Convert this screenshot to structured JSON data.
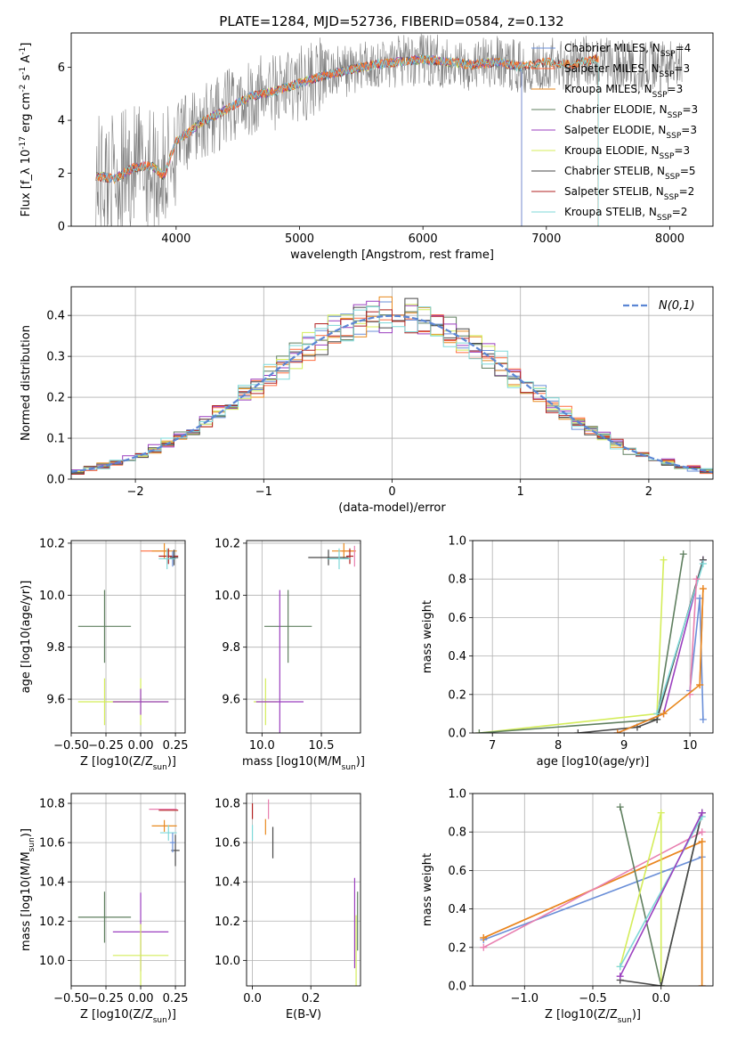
{
  "figure_title": "PLATE=1284, MJD=52736, FIBERID=0584, z=0.132",
  "colors": {
    "chabrier_miles": "#6a8fd8",
    "salpeter_miles": "#ff6b3d",
    "kroupa_miles": "#e8891e",
    "chabrier_elodie": "#5f7f5f",
    "salpeter_elodie": "#9b3fbf",
    "kroupa_elodie": "#d4ed5a",
    "chabrier_stelib": "#484848",
    "salpeter_stelib": "#b22222",
    "kroupa_stelib": "#7fd8d8",
    "pink": "#e87fb0",
    "gauss": "#5b86d4",
    "grid": "#b0b0b0"
  },
  "chart_data": [
    {
      "id": "spectrum",
      "type": "line",
      "xlabel": "wavelength [Angstrom, rest frame]",
      "ylabel": "Flux [f_λ 10^-17 erg cm^-2 s^-1 A^-1]",
      "xlim": [
        3150,
        8350
      ],
      "ylim": [
        0,
        7.3
      ],
      "xticks": [
        4000,
        5000,
        6000,
        7000,
        8000
      ],
      "yticks": [
        0,
        2,
        4,
        6
      ],
      "legend": [
        "Chabrier MILES, N_SSP=4",
        "Salpeter MILES, N_SSP=3",
        "Kroupa MILES, N_SSP=3",
        "Chabrier ELODIE, N_SSP=3",
        "Salpeter ELODIE, N_SSP=3",
        "Kroupa ELODIE, N_SSP=3",
        "Chabrier STELIB, N_SSP=5",
        "Salpeter STELIB, N_SSP=2",
        "Kroupa STELIB, N_SSP=2"
      ],
      "continuum": [
        [
          3350,
          1.9
        ],
        [
          3500,
          1.8
        ],
        [
          3650,
          2.2
        ],
        [
          3800,
          2.3
        ],
        [
          3900,
          1.9
        ],
        [
          4000,
          3.2
        ],
        [
          4200,
          3.9
        ],
        [
          4400,
          4.4
        ],
        [
          4600,
          4.9
        ],
        [
          4800,
          5.1
        ],
        [
          5000,
          5.4
        ],
        [
          5200,
          5.7
        ],
        [
          5400,
          5.9
        ],
        [
          5600,
          6.1
        ],
        [
          5800,
          6.2
        ],
        [
          6000,
          6.3
        ],
        [
          6200,
          6.2
        ],
        [
          6400,
          6.1
        ],
        [
          6600,
          6.2
        ],
        [
          6800,
          6.0
        ],
        [
          7000,
          6.2
        ],
        [
          7200,
          6.1
        ],
        [
          7400,
          6.3
        ],
        [
          7600,
          6.1
        ],
        [
          7800,
          6.0
        ],
        [
          8000,
          6.0
        ],
        [
          8100,
          5.9
        ]
      ],
      "model_end": [
        6800,
        7420,
        7420,
        6800,
        6800,
        6800,
        7420,
        7420,
        7420
      ]
    },
    {
      "id": "residuals",
      "type": "histogram",
      "xlabel": "(data-model)/error",
      "ylabel": "Normed distribution",
      "xlim": [
        -2.5,
        2.5
      ],
      "ylim": [
        0,
        0.47
      ],
      "xticks": [
        -2,
        -1,
        0,
        1,
        2
      ],
      "yticks": [
        0.0,
        0.1,
        0.2,
        0.3,
        0.4
      ],
      "legend_label": "N(0,1)",
      "bin_width": 0.1
    },
    {
      "id": "z_age",
      "type": "scatter",
      "xlabel": "Z [log10(Z/Z_sun)]",
      "ylabel": "age  [log10(age/yr)]",
      "xlim": [
        -0.5,
        0.32
      ],
      "ylim": [
        9.47,
        10.21
      ],
      "xticks": [
        -0.5,
        -0.25,
        0.0,
        0.25
      ],
      "yticks": [
        9.6,
        9.8,
        10.0,
        10.2
      ],
      "points": [
        {
          "c": "chabrier_elodie",
          "x": -0.26,
          "y": 9.88,
          "xerr": 0.19,
          "yerr": 0.14
        },
        {
          "c": "kroupa_elodie",
          "x": -0.26,
          "y": 9.59,
          "xerr": 0.19,
          "yerr": 0.09
        },
        {
          "c": "kroupa_elodie",
          "x": 0.0,
          "y": 9.59,
          "xerr": 0.2,
          "yerr": 0.09
        },
        {
          "c": "salpeter_elodie",
          "x": 0.0,
          "y": 9.59,
          "xerr": 0.2,
          "yerr": 0.05
        },
        {
          "c": "salpeter_miles",
          "x": 0.1,
          "y": 10.17,
          "xerr": 0.1,
          "yerr": 0.0
        },
        {
          "c": "kroupa_miles",
          "x": 0.17,
          "y": 10.17,
          "xerr": 0.09,
          "yerr": 0.03
        },
        {
          "c": "salpeter_stelib",
          "x": 0.2,
          "y": 10.15,
          "xerr": 0.07,
          "yerr": 0.03
        },
        {
          "c": "chabrier_miles",
          "x": 0.23,
          "y": 10.14,
          "xerr": 0.02,
          "yerr": 0.03
        },
        {
          "c": "chabrier_stelib",
          "x": 0.24,
          "y": 10.145,
          "xerr": 0.03,
          "yerr": 0.03
        },
        {
          "c": "kroupa_stelib",
          "x": 0.19,
          "y": 10.14,
          "xerr": 0.06,
          "yerr": 0.04
        }
      ]
    },
    {
      "id": "mass_age",
      "type": "scatter",
      "xlabel": "mass [log10(M/M_sun)]",
      "ylabel": "",
      "xlim": [
        9.87,
        10.83
      ],
      "ylim": [
        9.47,
        10.21
      ],
      "xticks": [
        10.0,
        10.5
      ],
      "yticks": [
        9.6,
        9.8,
        10.0,
        10.2
      ],
      "points": [
        {
          "c": "chabrier_elodie",
          "x": 10.22,
          "y": 9.88,
          "xerr": 0.2,
          "yerr": 0.14
        },
        {
          "c": "kroupa_elodie",
          "x": 10.03,
          "y": 9.59,
          "xerr": 0.1,
          "yerr": 0.09
        },
        {
          "c": "salpeter_elodie",
          "x": 10.15,
          "y": 9.59,
          "xerr": 0.2,
          "yerr": 0.43
        },
        {
          "c": "salpeter_miles",
          "x": 10.73,
          "y": 10.17,
          "xerr": 0.06,
          "yerr": 0.0
        },
        {
          "c": "kroupa_miles",
          "x": 10.69,
          "y": 10.17,
          "xerr": 0.1,
          "yerr": 0.03
        },
        {
          "c": "salpeter_stelib",
          "x": 10.74,
          "y": 10.15,
          "xerr": 0.03,
          "yerr": 0.03
        },
        {
          "c": "chabrier_stelib",
          "x": 10.56,
          "y": 10.145,
          "xerr": 0.17,
          "yerr": 0.03
        },
        {
          "c": "kroupa_stelib",
          "x": 10.65,
          "y": 10.14,
          "xerr": 0.1,
          "yerr": 0.04
        },
        {
          "c": "pink",
          "x": 10.78,
          "y": 10.15,
          "xerr": 0.0,
          "yerr": 0.04
        }
      ]
    },
    {
      "id": "age_weight",
      "type": "line",
      "xlabel": "age  [log10(age/yr)]",
      "ylabel": "mass weight",
      "xlim": [
        6.7,
        10.35
      ],
      "ylim": [
        0,
        1.0
      ],
      "xticks": [
        7,
        8,
        9,
        10
      ],
      "yticks": [
        0.0,
        0.2,
        0.4,
        0.6,
        0.8,
        1.0
      ],
      "lines": [
        {
          "c": "kroupa_elodie",
          "pts": [
            [
              6.8,
              0.0
            ],
            [
              9.5,
              0.1
            ],
            [
              9.6,
              0.9
            ]
          ]
        },
        {
          "c": "chabrier_elodie",
          "pts": [
            [
              6.8,
              0.0
            ],
            [
              9.5,
              0.07
            ],
            [
              9.9,
              0.93
            ]
          ]
        },
        {
          "c": "salpeter_elodie",
          "pts": [
            [
              8.9,
              0.0
            ],
            [
              9.6,
              0.1
            ],
            [
              10.2,
              0.9
            ]
          ]
        },
        {
          "c": "chabrier_stelib",
          "pts": [
            [
              8.3,
              0.0
            ],
            [
              9.2,
              0.03
            ],
            [
              9.5,
              0.07
            ],
            [
              10.2,
              0.9
            ]
          ]
        },
        {
          "c": "kroupa_stelib",
          "pts": [
            [
              9.5,
              0.1
            ],
            [
              10.2,
              0.88
            ]
          ]
        },
        {
          "c": "salpeter_miles",
          "pts": [
            [
              10.15,
              0.25
            ],
            [
              10.2,
              0.75
            ]
          ]
        },
        {
          "c": "chabrier_miles",
          "pts": [
            [
              10.0,
              0.22
            ],
            [
              10.15,
              0.7
            ],
            [
              10.2,
              0.07
            ]
          ]
        },
        {
          "c": "pink",
          "pts": [
            [
              10.0,
              0.2
            ],
            [
              10.1,
              0.8
            ]
          ]
        },
        {
          "c": "kroupa_miles",
          "pts": [
            [
              8.9,
              0.0
            ],
            [
              9.6,
              0.1
            ],
            [
              10.15,
              0.25
            ],
            [
              10.2,
              0.75
            ]
          ]
        }
      ]
    },
    {
      "id": "z_mass",
      "type": "scatter",
      "xlabel": "Z [log10(Z/Z_sun)]",
      "ylabel": "mass [log10(M/M_sun)]",
      "xlim": [
        -0.5,
        0.32
      ],
      "ylim": [
        9.87,
        10.85
      ],
      "xticks": [
        -0.5,
        -0.25,
        0.0,
        0.25
      ],
      "yticks": [
        10.0,
        10.2,
        10.4,
        10.6,
        10.8
      ],
      "points": [
        {
          "c": "chabrier_elodie",
          "x": -0.26,
          "y": 10.22,
          "xerr": 0.19,
          "yerr": 0.13
        },
        {
          "c": "salpeter_elodie",
          "x": 0.0,
          "y": 10.145,
          "xerr": 0.2,
          "yerr": 0.2
        },
        {
          "c": "kroupa_elodie",
          "x": 0.0,
          "y": 10.025,
          "xerr": 0.2,
          "yerr": 0.16
        },
        {
          "c": "salpeter_stelib",
          "x": 0.2,
          "y": 10.765,
          "xerr": 0.07,
          "yerr": 0.0
        },
        {
          "c": "pink",
          "x": 0.16,
          "y": 10.77,
          "xerr": 0.1,
          "yerr": 0.0
        },
        {
          "c": "kroupa_miles",
          "x": 0.17,
          "y": 10.685,
          "xerr": 0.09,
          "yerr": 0.03
        },
        {
          "c": "kroupa_stelib",
          "x": 0.2,
          "y": 10.65,
          "xerr": 0.06,
          "yerr": 0.04
        },
        {
          "c": "chabrier_stelib",
          "x": 0.25,
          "y": 10.56,
          "xerr": 0.03,
          "yerr": 0.08
        },
        {
          "c": "chabrier_miles",
          "x": 0.23,
          "y": 10.6,
          "xerr": 0.02,
          "yerr": 0.05
        }
      ]
    },
    {
      "id": "ebv_mass",
      "type": "scatter",
      "xlabel": "E(B-V)",
      "ylabel": "",
      "xlim": [
        -0.02,
        0.37
      ],
      "ylim": [
        9.87,
        10.85
      ],
      "xticks": [
        0.0,
        0.2
      ],
      "yticks": [
        10.0,
        10.2,
        10.4,
        10.6,
        10.8
      ],
      "points": [
        {
          "c": "salpeter_stelib",
          "x": 0.0,
          "y": 10.76,
          "xerr": 0,
          "yerr": 0.04
        },
        {
          "c": "kroupa_stelib",
          "x": 0.0,
          "y": 10.65,
          "xerr": 0,
          "yerr": 0.04
        },
        {
          "c": "kroupa_miles",
          "x": 0.045,
          "y": 10.68,
          "xerr": 0,
          "yerr": 0.04
        },
        {
          "c": "pink",
          "x": 0.055,
          "y": 10.77,
          "xerr": 0,
          "yerr": 0.05
        },
        {
          "c": "chabrier_stelib",
          "x": 0.07,
          "y": 10.6,
          "xerr": 0,
          "yerr": 0.08
        },
        {
          "c": "salpeter_elodie",
          "x": 0.35,
          "y": 10.19,
          "xerr": 0,
          "yerr": 0.23
        },
        {
          "c": "kroupa_elodie",
          "x": 0.355,
          "y": 10.05,
          "xerr": 0,
          "yerr": 0.18
        },
        {
          "c": "chabrier_elodie",
          "x": 0.36,
          "y": 10.2,
          "xerr": 0,
          "yerr": 0.15
        }
      ]
    },
    {
      "id": "z_weight",
      "type": "line",
      "xlabel": "Z [log10(Z/Z_sun)]",
      "ylabel": "mass weight",
      "xlim": [
        -1.38,
        0.38
      ],
      "ylim": [
        0,
        1.0
      ],
      "xticks": [
        -1.0,
        -0.5,
        0.0
      ],
      "yticks": [
        0.0,
        0.2,
        0.4,
        0.6,
        0.8,
        1.0
      ],
      "lines": [
        {
          "c": "chabrier_miles",
          "pts": [
            [
              -1.3,
              0.24
            ],
            [
              0.3,
              0.67
            ]
          ]
        },
        {
          "c": "salpeter_miles",
          "pts": [
            [
              -1.3,
              0.25
            ],
            [
              0.3,
              0.75
            ],
            [
              0.3,
              0.0
            ]
          ]
        },
        {
          "c": "kroupa_miles",
          "pts": [
            [
              -1.3,
              0.25
            ],
            [
              0.3,
              0.75
            ],
            [
              0.3,
              0.0
            ]
          ]
        },
        {
          "c": "pink",
          "pts": [
            [
              -1.3,
              0.2
            ],
            [
              0.3,
              0.8
            ]
          ]
        },
        {
          "c": "chabrier_elodie",
          "pts": [
            [
              -0.3,
              0.93
            ],
            [
              0.0,
              0.0
            ],
            [
              0.3,
              0.9
            ]
          ]
        },
        {
          "c": "kroupa_elodie",
          "pts": [
            [
              -0.3,
              0.1
            ],
            [
              0.0,
              0.9
            ],
            [
              0.0,
              0.0
            ]
          ]
        },
        {
          "c": "chabrier_stelib",
          "pts": [
            [
              -0.3,
              0.03
            ],
            [
              0.0,
              0.0
            ],
            [
              0.3,
              0.9
            ]
          ]
        },
        {
          "c": "kroupa_stelib",
          "pts": [
            [
              -0.3,
              0.1
            ],
            [
              0.3,
              0.88
            ]
          ]
        },
        {
          "c": "salpeter_elodie",
          "pts": [
            [
              -0.3,
              0.05
            ],
            [
              0.3,
              0.9
            ]
          ]
        }
      ]
    }
  ]
}
